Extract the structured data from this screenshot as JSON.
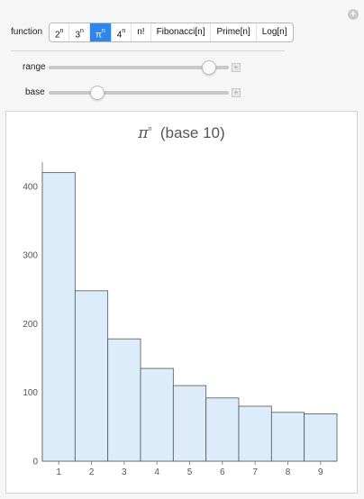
{
  "controls": {
    "function_label": "function",
    "functions": [
      {
        "base": "2",
        "sup": "n",
        "active": false
      },
      {
        "base": "3",
        "sup": "n",
        "active": false
      },
      {
        "base": "π",
        "sup": "n",
        "active": true
      },
      {
        "base": "4",
        "sup": "n",
        "active": false
      },
      {
        "base": "n!",
        "sup": "",
        "active": false
      },
      {
        "base": "Fibonacci[n]",
        "sup": "",
        "active": false
      },
      {
        "base": "Prime[n]",
        "sup": "",
        "active": false
      },
      {
        "base": "Log[n]",
        "sup": "",
        "active": false
      }
    ],
    "range_label": "range",
    "base_label": "base",
    "range_slider_position": 0.89,
    "base_slider_position": 0.27,
    "expand_icon": "plus-icon"
  },
  "chart": {
    "title_base": "π",
    "title_sup": "n",
    "title_rest": "(base 10)"
  },
  "colors": {
    "bar_fill": "#dcecfb",
    "bar_stroke": "#555555",
    "active_button": "#2e86e8"
  },
  "chart_data": {
    "type": "bar",
    "title": "πⁿ (base 10)",
    "categories": [
      "1",
      "2",
      "3",
      "4",
      "5",
      "6",
      "7",
      "8",
      "9"
    ],
    "values": [
      420,
      248,
      178,
      135,
      110,
      92,
      80,
      71,
      69
    ],
    "ylim": [
      0,
      430
    ],
    "yticks": [
      0,
      100,
      200,
      300,
      400
    ],
    "xlabel": "",
    "ylabel": "",
    "grid": false
  }
}
